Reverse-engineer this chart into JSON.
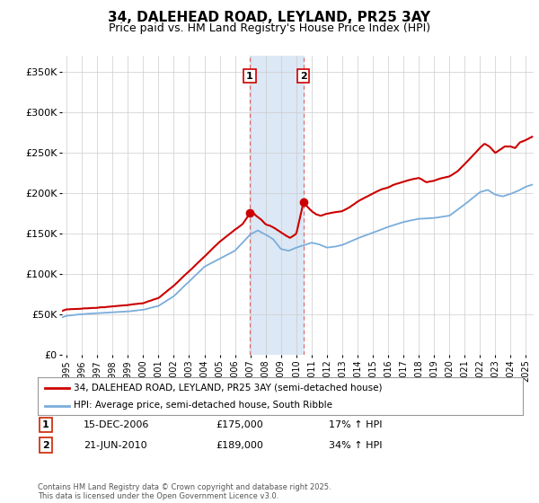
{
  "title": "34, DALEHEAD ROAD, LEYLAND, PR25 3AY",
  "subtitle": "Price paid vs. HM Land Registry's House Price Index (HPI)",
  "title_fontsize": 11,
  "subtitle_fontsize": 9,
  "ylabel_ticks": [
    "£0",
    "£50K",
    "£100K",
    "£150K",
    "£200K",
    "£250K",
    "£300K",
    "£350K"
  ],
  "ytick_values": [
    0,
    50000,
    100000,
    150000,
    200000,
    250000,
    300000,
    350000
  ],
  "ylim": [
    0,
    370000
  ],
  "xlim_start": 1994.7,
  "xlim_end": 2025.5,
  "xtick_years": [
    1995,
    1996,
    1997,
    1998,
    1999,
    2000,
    2001,
    2002,
    2003,
    2004,
    2005,
    2006,
    2007,
    2008,
    2009,
    2010,
    2011,
    2012,
    2013,
    2014,
    2015,
    2016,
    2017,
    2018,
    2019,
    2020,
    2021,
    2022,
    2023,
    2024,
    2025
  ],
  "sale1_x": 2006.96,
  "sale1_y": 175000,
  "sale2_x": 2010.47,
  "sale2_y": 189000,
  "shade_x0": 2006.96,
  "shade_x1": 2010.47,
  "red_color": "#cc0000",
  "blue_color": "#7aaddb",
  "shade_color": "#dce8f5",
  "vline_color": "#dd6666",
  "grid_color": "#cccccc",
  "bg_color": "#ffffff",
  "legend_line1": "34, DALEHEAD ROAD, LEYLAND, PR25 3AY (semi-detached house)",
  "legend_line2": "HPI: Average price, semi-detached house, South Ribble",
  "annotation1_date": "15-DEC-2006",
  "annotation1_price": "£175,000",
  "annotation1_hpi": "17% ↑ HPI",
  "annotation2_date": "21-JUN-2010",
  "annotation2_price": "£189,000",
  "annotation2_hpi": "34% ↑ HPI",
  "footer": "Contains HM Land Registry data © Crown copyright and database right 2025.\nThis data is licensed under the Open Government Licence v3.0."
}
